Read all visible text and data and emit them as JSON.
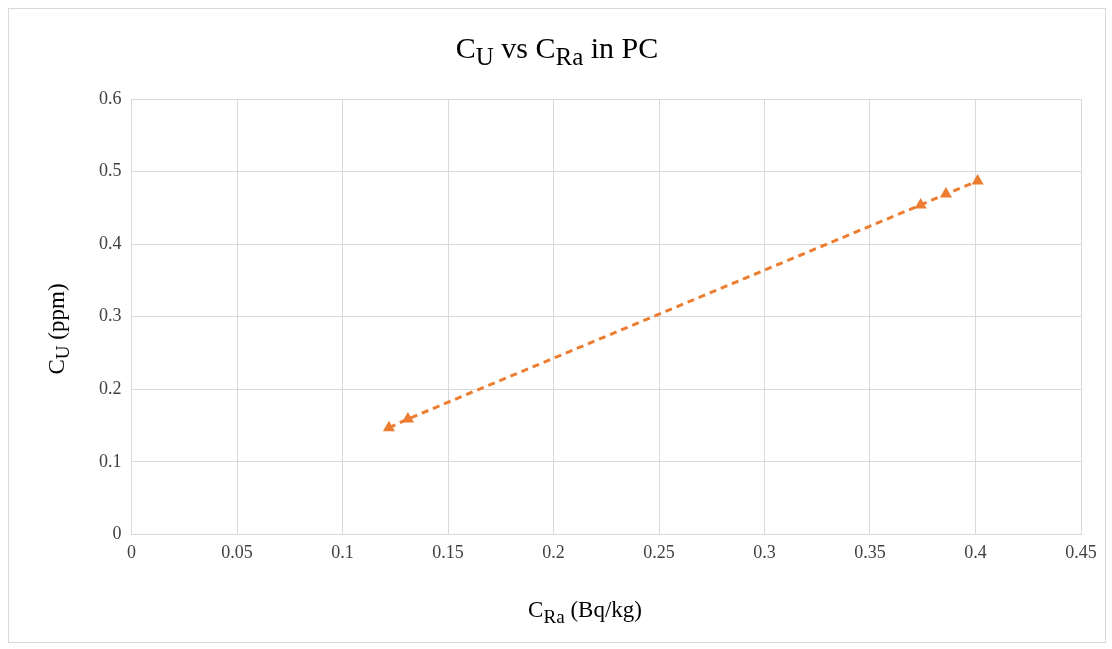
{
  "chart_data": {
    "type": "line",
    "title": "C$_{U}$ vs C$_{Ra}$ in PC",
    "xlabel": "C$_{Ra}$ (Bq/kg)",
    "ylabel": "C$_{U}$ (ppm)",
    "x": [
      0.122,
      0.131,
      0.374,
      0.386,
      0.401
    ],
    "series": [
      {
        "color": "#ed7d31",
        "values": [
          0.147,
          0.159,
          0.454,
          0.469,
          0.487
        ]
      }
    ],
    "xlim": [
      0,
      0.45
    ],
    "xticks": [
      0,
      0.05,
      0.1,
      0.15,
      0.2,
      0.25,
      0.3,
      0.35,
      0.4,
      0.45
    ],
    "ylim": [
      0,
      0.6
    ],
    "yticks": [
      0,
      0.1,
      0.2,
      0.3,
      0.4,
      0.5,
      0.6
    ],
    "grid": true,
    "legend": false,
    "marker": "triangle",
    "line_style": "dashed"
  }
}
